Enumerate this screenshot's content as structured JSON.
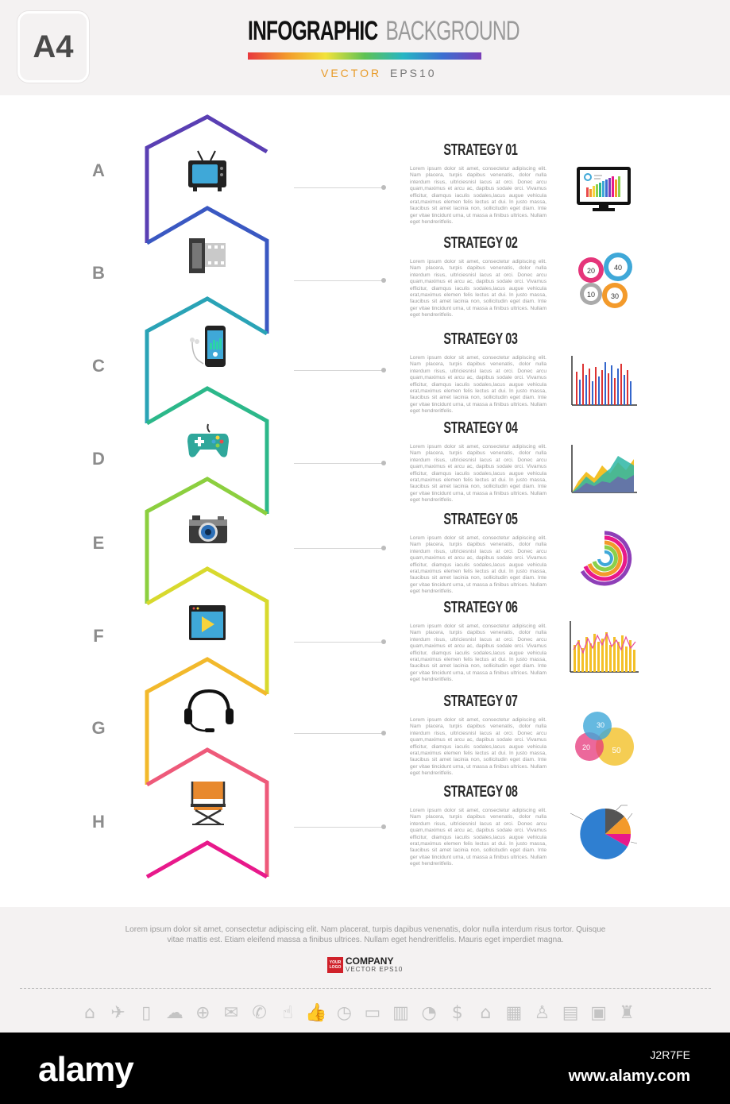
{
  "header": {
    "badge": "A4",
    "title_main": "INFOGRAPHIC",
    "title_secondary": "BACKGROUND",
    "subtitle_accent": "VECTOR",
    "subtitle_rest": "EPS10"
  },
  "colors": {
    "chevrons": [
      "#5a3fb3",
      "#3a58c2",
      "#2aa3b6",
      "#2cb88a",
      "#8ccf3f",
      "#d8d92e",
      "#f2b92c",
      "#ee5a7a",
      "#e8198b"
    ]
  },
  "steps": [
    {
      "letter": "A",
      "icon": "tv-icon",
      "title": "STRATEGY 01",
      "chart": "monitor-bar-chart"
    },
    {
      "letter": "B",
      "icon": "film-roll-icon",
      "title": "STRATEGY 02",
      "chart": "quadrant-circles",
      "chart_values": [
        "20",
        "40",
        "10",
        "30"
      ]
    },
    {
      "letter": "C",
      "icon": "music-phone-icon",
      "title": "STRATEGY 03",
      "chart": "bar-chart"
    },
    {
      "letter": "D",
      "icon": "gamepad-icon",
      "title": "STRATEGY 04",
      "chart": "area-chart"
    },
    {
      "letter": "E",
      "icon": "camera-icon",
      "title": "STRATEGY 05",
      "chart": "radial-chart"
    },
    {
      "letter": "F",
      "icon": "video-player-icon",
      "title": "STRATEGY 06",
      "chart": "bar-line-chart"
    },
    {
      "letter": "G",
      "icon": "headset-icon",
      "title": "STRATEGY 07",
      "chart": "venn-chart",
      "chart_values": [
        "30",
        "20",
        "50"
      ]
    },
    {
      "letter": "H",
      "icon": "director-chair-icon",
      "title": "STRATEGY 08",
      "chart": "pie-chart"
    }
  ],
  "body_text": "Lorem ipsum dolor sit amet, consectetur adipiscing elit. Nam placera, turpis dapibus venenatis, dolor nulla interdum risus, ultriciesnisl lacus at orci. Donec arcu quam,maximus et arcu ac, dapibus sodale orci. Vivamus efficitur, diamqus iaculis sodales,lacus augue vehicula erat,maximus elemen felis lectus at dui. In justo massa, faucibus sit amet lacinia non, sollicitudin eget diam. Inte ger vitae tincidunt urna, ut massa a finibus ultrices. Nullam eget hendreritfelis.",
  "footer": {
    "text": "Lorem ipsum dolor sit amet, consectetur adipiscing elit. Nam placerat, turpis dapibus venenatis,  dolor nulla interdum risus tortor. Quisque vitae mattis est. Etiam eleifend massa a finibus ultrices. Nullam eget hendreritfelis. Mauris eget imperdiet magna.",
    "logo_box": "YOUR LOGO",
    "company": "COMPANY",
    "logo_sub": "VECTOR  EPS10",
    "icons": [
      "home-icon",
      "plane-icon",
      "phone-icon",
      "cloud-icon",
      "globe-icon",
      "mail-icon",
      "telephone-icon",
      "touch-icon",
      "thumbs-up-icon",
      "clock-icon",
      "monitor-icon",
      "chart-icon",
      "pie-icon",
      "dollar-icon",
      "bank-icon",
      "briefcase-icon",
      "person-icon",
      "calculator-icon",
      "money-icon",
      "chess-icon"
    ],
    "icon_glyphs": [
      "⌂",
      "✈",
      "▯",
      "☁",
      "⊕",
      "✉",
      "✆",
      "☝",
      "👍",
      "◷",
      "▭",
      "▥",
      "◔",
      "$",
      "⌂",
      "▦",
      "♙",
      "▤",
      "▣",
      "♜"
    ]
  },
  "watermark": {
    "logo": "alamy",
    "image_id": "J2R7FE",
    "url": "www.alamy.com"
  }
}
